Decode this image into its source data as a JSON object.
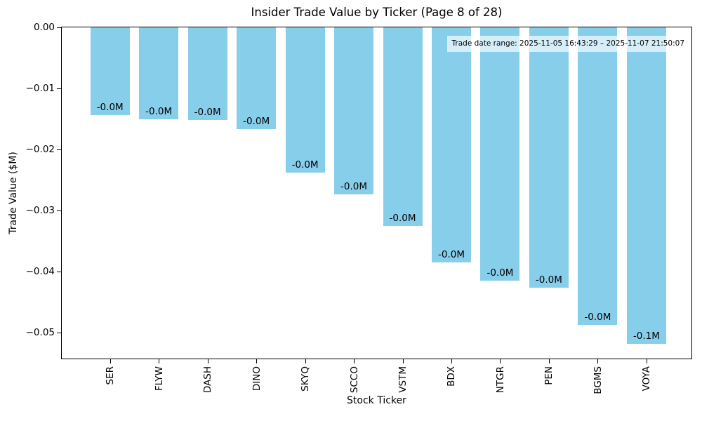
{
  "chart_data": {
    "type": "bar",
    "title": "Insider Trade Value by Ticker (Page 8 of 28)",
    "xlabel": "Stock Ticker",
    "ylabel": "Trade Value ($M)",
    "categories": [
      "SER",
      "FLYW",
      "DASH",
      "DINO",
      "SKYQ",
      "SCCO",
      "VSTM",
      "BDX",
      "NTGR",
      "PEN",
      "BGMS",
      "VOYA"
    ],
    "values": [
      -0.0144,
      -0.0151,
      -0.0152,
      -0.0167,
      -0.0238,
      -0.0274,
      -0.0325,
      -0.0385,
      -0.0415,
      -0.0426,
      -0.0488,
      -0.0519
    ],
    "bar_labels": [
      "-0.0M",
      "-0.0M",
      "-0.0M",
      "-0.0M",
      "-0.0M",
      "-0.0M",
      "-0.0M",
      "-0.0M",
      "-0.0M",
      "-0.0M",
      "-0.0M",
      "-0.1M"
    ],
    "y_ticks": {
      "values": [
        0,
        -0.01,
        -0.02,
        -0.03,
        -0.04,
        -0.05
      ],
      "labels": [
        "0.00",
        "−0.01",
        "−0.02",
        "−0.03",
        "−0.04",
        "−0.05"
      ]
    },
    "ylim": [
      -0.0545,
      0
    ],
    "bar_color": "#87CEEB",
    "annotation": "Trade date range: 2025-11-05 16:43:29 – 2025-11-07 21:50:07",
    "grid": false,
    "legend_position": "none"
  }
}
